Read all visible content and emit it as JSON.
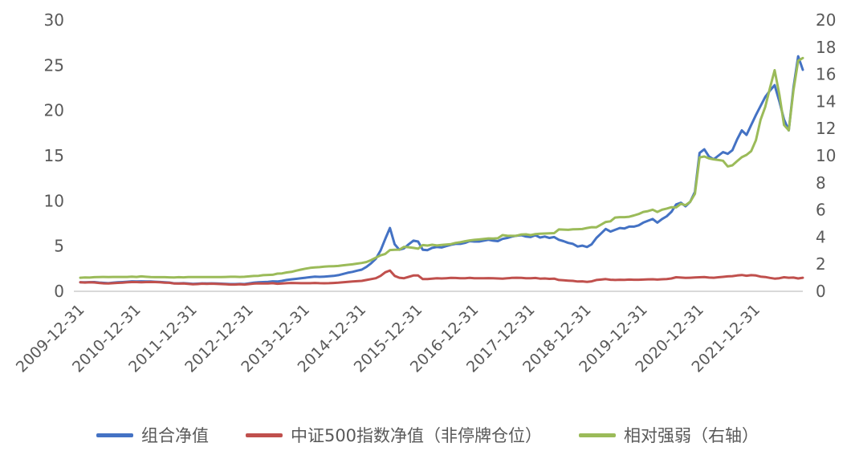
{
  "chart_data": {
    "type": "line",
    "title": "",
    "xlabel": "",
    "ylabel_left": "",
    "ylabel_right": "",
    "grid": false,
    "legend_position": "bottom",
    "x_sampling": "monthly from 2009-12 to 2022-10",
    "x_tick_labels": [
      "2009-12-31",
      "2010-12-31",
      "2011-12-31",
      "2012-12-31",
      "2013-12-31",
      "2014-12-31",
      "2015-12-31",
      "2016-12-31",
      "2017-12-31",
      "2018-12-31",
      "2019-12-31",
      "2020-12-31",
      "2021-12-31"
    ],
    "x_tick_indices": [
      0,
      12,
      24,
      36,
      48,
      60,
      72,
      84,
      96,
      108,
      120,
      132,
      144
    ],
    "axes": {
      "left": {
        "range": [
          0,
          30
        ],
        "ticks": [
          0,
          5,
          10,
          15,
          20,
          25,
          30
        ]
      },
      "right": {
        "range": [
          0,
          20
        ],
        "ticks": [
          0,
          2,
          4,
          6,
          8,
          10,
          12,
          14,
          16,
          18,
          20
        ]
      }
    },
    "series": [
      {
        "id": "portfolio-nav",
        "name": "组合净值",
        "axis": "left",
        "color": "#4472C4",
        "values": [
          1.0,
          0.99,
          1.01,
          1.02,
          0.97,
          0.93,
          0.9,
          0.95,
          0.99,
          1.02,
          1.06,
          1.1,
          1.08,
          1.1,
          1.09,
          1.08,
          1.06,
          1.03,
          1.0,
          0.97,
          0.88,
          0.88,
          0.9,
          0.86,
          0.82,
          0.84,
          0.88,
          0.86,
          0.88,
          0.86,
          0.84,
          0.82,
          0.8,
          0.8,
          0.82,
          0.8,
          0.88,
          0.96,
          1.0,
          1.02,
          1.05,
          1.1,
          1.08,
          1.15,
          1.25,
          1.32,
          1.38,
          1.44,
          1.5,
          1.56,
          1.62,
          1.6,
          1.62,
          1.66,
          1.7,
          1.78,
          1.92,
          2.05,
          2.15,
          2.28,
          2.4,
          2.7,
          3.1,
          3.6,
          4.5,
          5.8,
          7.0,
          5.2,
          4.6,
          4.75,
          5.2,
          5.6,
          5.5,
          4.6,
          4.55,
          4.8,
          4.9,
          4.85,
          5.0,
          5.15,
          5.25,
          5.25,
          5.35,
          5.55,
          5.5,
          5.5,
          5.6,
          5.7,
          5.6,
          5.55,
          5.8,
          5.9,
          6.05,
          6.15,
          6.2,
          6.05,
          6.0,
          6.2,
          5.95,
          6.05,
          5.9,
          6.0,
          5.7,
          5.55,
          5.35,
          5.25,
          4.95,
          5.05,
          4.9,
          5.2,
          5.9,
          6.4,
          6.9,
          6.6,
          6.8,
          7.0,
          6.95,
          7.15,
          7.15,
          7.3,
          7.6,
          7.8,
          8.0,
          7.6,
          8.0,
          8.3,
          8.8,
          9.6,
          9.8,
          9.4,
          9.9,
          11.0,
          15.3,
          15.7,
          14.9,
          14.6,
          15.0,
          15.4,
          15.2,
          15.6,
          16.8,
          17.8,
          17.3,
          18.4,
          19.5,
          20.5,
          21.5,
          22.2,
          22.8,
          21.0,
          19.0,
          17.8,
          22.5,
          26.0,
          24.5
        ]
      },
      {
        "id": "csi500-nav",
        "name": "中证500指数净值（非停牌仓位）",
        "axis": "left",
        "color": "#C0504D",
        "values": [
          1.0,
          0.97,
          1.0,
          0.98,
          0.92,
          0.88,
          0.86,
          0.9,
          0.93,
          0.96,
          1.0,
          1.02,
          1.02,
          1.0,
          1.02,
          1.03,
          1.02,
          0.99,
          0.96,
          0.94,
          0.86,
          0.85,
          0.87,
          0.82,
          0.78,
          0.8,
          0.84,
          0.82,
          0.84,
          0.82,
          0.8,
          0.77,
          0.75,
          0.75,
          0.77,
          0.75,
          0.8,
          0.85,
          0.88,
          0.86,
          0.87,
          0.9,
          0.83,
          0.87,
          0.9,
          0.92,
          0.91,
          0.9,
          0.9,
          0.9,
          0.92,
          0.9,
          0.89,
          0.9,
          0.92,
          0.95,
          1.0,
          1.05,
          1.08,
          1.12,
          1.15,
          1.25,
          1.35,
          1.45,
          1.7,
          2.1,
          2.3,
          1.7,
          1.5,
          1.45,
          1.6,
          1.75,
          1.75,
          1.35,
          1.35,
          1.4,
          1.45,
          1.42,
          1.45,
          1.48,
          1.47,
          1.45,
          1.45,
          1.48,
          1.45,
          1.44,
          1.45,
          1.46,
          1.44,
          1.42,
          1.4,
          1.44,
          1.48,
          1.5,
          1.48,
          1.44,
          1.45,
          1.47,
          1.4,
          1.42,
          1.38,
          1.4,
          1.25,
          1.22,
          1.18,
          1.15,
          1.08,
          1.1,
          1.05,
          1.1,
          1.25,
          1.3,
          1.35,
          1.28,
          1.25,
          1.28,
          1.27,
          1.3,
          1.28,
          1.28,
          1.3,
          1.32,
          1.33,
          1.3,
          1.33,
          1.36,
          1.42,
          1.55,
          1.52,
          1.48,
          1.5,
          1.53,
          1.55,
          1.58,
          1.52,
          1.5,
          1.55,
          1.6,
          1.65,
          1.68,
          1.75,
          1.8,
          1.72,
          1.78,
          1.75,
          1.62,
          1.58,
          1.48,
          1.4,
          1.45,
          1.55,
          1.5,
          1.52,
          1.42,
          1.5
        ]
      },
      {
        "id": "relative-strength",
        "name": "相对强弱（右轴）",
        "axis": "right",
        "color": "#9BBB59",
        "values": [
          1.0,
          1.02,
          1.01,
          1.04,
          1.05,
          1.06,
          1.05,
          1.06,
          1.06,
          1.06,
          1.06,
          1.08,
          1.06,
          1.1,
          1.07,
          1.05,
          1.04,
          1.04,
          1.04,
          1.03,
          1.02,
          1.04,
          1.03,
          1.05,
          1.05,
          1.05,
          1.05,
          1.05,
          1.05,
          1.05,
          1.05,
          1.06,
          1.07,
          1.07,
          1.06,
          1.07,
          1.1,
          1.13,
          1.14,
          1.19,
          1.21,
          1.22,
          1.3,
          1.32,
          1.39,
          1.43,
          1.52,
          1.6,
          1.67,
          1.73,
          1.76,
          1.78,
          1.82,
          1.84,
          1.85,
          1.87,
          1.92,
          1.95,
          1.99,
          2.04,
          2.09,
          2.16,
          2.3,
          2.48,
          2.65,
          2.76,
          3.04,
          3.06,
          3.07,
          3.28,
          3.25,
          3.2,
          3.14,
          3.41,
          3.37,
          3.43,
          3.38,
          3.42,
          3.45,
          3.48,
          3.57,
          3.62,
          3.69,
          3.75,
          3.79,
          3.82,
          3.86,
          3.9,
          3.89,
          3.91,
          4.14,
          4.1,
          4.09,
          4.1,
          4.19,
          4.2,
          4.14,
          4.22,
          4.25,
          4.26,
          4.28,
          4.29,
          4.56,
          4.55,
          4.53,
          4.57,
          4.58,
          4.59,
          4.67,
          4.73,
          4.72,
          4.92,
          5.11,
          5.16,
          5.44,
          5.47,
          5.47,
          5.5,
          5.59,
          5.7,
          5.85,
          5.91,
          6.02,
          5.85,
          6.02,
          6.1,
          6.2,
          6.19,
          6.45,
          6.35,
          6.6,
          7.19,
          9.87,
          9.94,
          9.8,
          9.73,
          9.68,
          9.63,
          9.21,
          9.29,
          9.6,
          9.89,
          10.06,
          10.34,
          11.14,
          12.65,
          13.6,
          15.0,
          16.3,
          14.5,
          12.26,
          11.87,
          14.8,
          17.0,
          17.2
        ]
      }
    ]
  },
  "colors": {
    "background": "#FFFFFF",
    "axis_text": "#595959",
    "axis_line": "#D9D9D9"
  },
  "legend": {
    "items": [
      {
        "label": "组合净值",
        "color": "#4472C4"
      },
      {
        "label": "中证500指数净值（非停牌仓位）",
        "color": "#C0504D"
      },
      {
        "label": "相对强弱（右轴）",
        "color": "#9BBB59"
      }
    ]
  }
}
